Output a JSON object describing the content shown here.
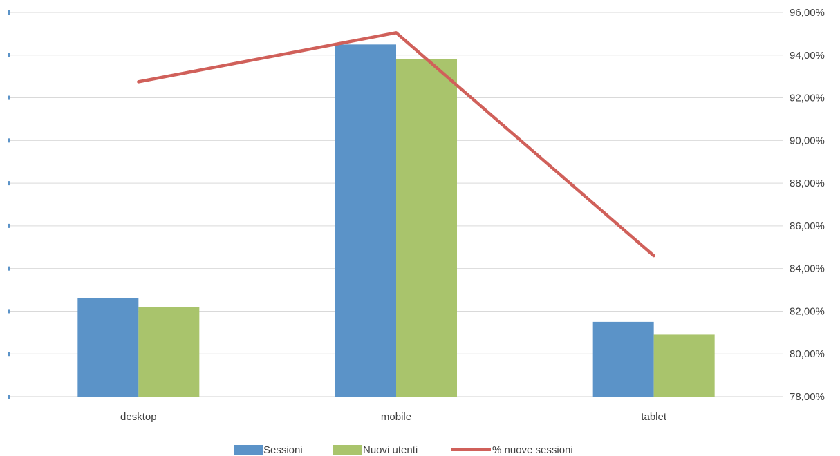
{
  "chart_data": {
    "type": "bar",
    "categories": [
      "desktop",
      "mobile",
      "tablet"
    ],
    "series": [
      {
        "name": "Sessioni",
        "kind": "bar",
        "axis": "left",
        "color": "#5b93c8",
        "values": [
          82.6,
          94.5,
          81.5
        ]
      },
      {
        "name": "Nuovi utenti",
        "kind": "bar",
        "axis": "left",
        "color": "#a9c46c",
        "values": [
          82.2,
          93.8,
          80.9
        ]
      },
      {
        "name": "% nuove sessioni",
        "kind": "line",
        "axis": "right",
        "color": "#d0605a",
        "values": [
          92.75,
          95.05,
          84.6
        ]
      }
    ],
    "left_axis": {
      "ylim": [
        78,
        96
      ],
      "tick_step": 2,
      "labels_visible": false
    },
    "right_axis": {
      "ylim": [
        78,
        96
      ],
      "ticks": [
        "78,00%",
        "80,00%",
        "82,00%",
        "84,00%",
        "86,00%",
        "88,00%",
        "90,00%",
        "92,00%",
        "94,00%",
        "96,00%"
      ]
    },
    "grid": true,
    "legend": "bottom",
    "title": "",
    "xlabel": "",
    "ylabel": ""
  }
}
